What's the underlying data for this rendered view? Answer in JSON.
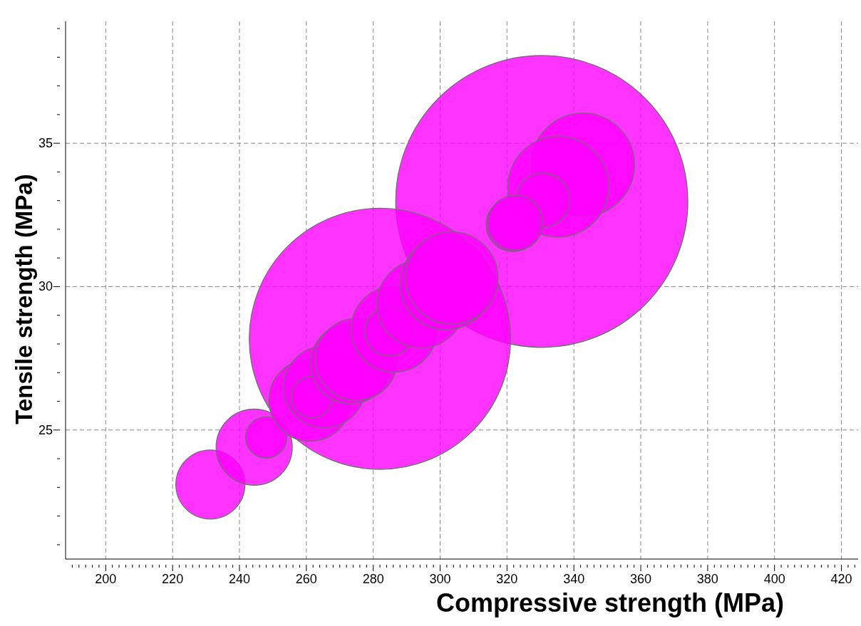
{
  "chart_data": {
    "type": "bubble",
    "xlabel": "Compressive strength (MPa)",
    "ylabel": "Tensile strength (MPa)",
    "color": "#ff00ff",
    "x": [
      330.4,
      282.0,
      231.3,
      244.4,
      248.0,
      261.1,
      265.4,
      261.7,
      273.3,
      275.0,
      286.3,
      284.8,
      294.3,
      301.8,
      303.5,
      342.7,
      335.3,
      330.7,
      321.8,
      322.5
    ],
    "values": [
      32.97,
      28.18,
      23.1,
      24.4,
      24.74,
      26.04,
      26.5,
      26.14,
      27.32,
      27.46,
      28.52,
      28.43,
      29.4,
      30.1,
      30.3,
      34.25,
      33.48,
      33.01,
      32.16,
      32.22
    ],
    "sizes": [
      1,
      0.8,
      0.056,
      0.068,
      0.02,
      0.079,
      0.078,
      0.02,
      0.076,
      0.079,
      0.087,
      0.028,
      0.091,
      0.099,
      0.1,
      0.125,
      0.119,
      0.034,
      0.034,
      0.036
    ],
    "xlim": [
      188,
      425
    ],
    "ylim": [
      20.5,
      39.25
    ],
    "xticks": [
      {
        "value": 190,
        "label": null
      },
      {
        "value": 192,
        "label": null
      },
      {
        "value": 194,
        "label": null
      },
      {
        "value": 196,
        "label": null
      },
      {
        "value": 198,
        "label": null
      },
      200,
      {
        "value": 202,
        "label": null
      },
      {
        "value": 204,
        "label": null
      },
      {
        "value": 206,
        "label": null
      },
      {
        "value": 208,
        "label": null
      },
      {
        "value": 210,
        "label": null
      },
      {
        "value": 212,
        "label": null
      },
      {
        "value": 214,
        "label": null
      },
      {
        "value": 216,
        "label": null
      },
      {
        "value": 218,
        "label": null
      },
      220,
      {
        "value": 222,
        "label": null
      },
      {
        "value": 224,
        "label": null
      },
      {
        "value": 226,
        "label": null
      },
      {
        "value": 228,
        "label": null
      },
      {
        "value": 230,
        "label": null
      },
      {
        "value": 232,
        "label": null
      },
      {
        "value": 234,
        "label": null
      },
      {
        "value": 236,
        "label": null
      },
      {
        "value": 238,
        "label": null
      },
      240,
      {
        "value": 242,
        "label": null
      },
      {
        "value": 244,
        "label": null
      },
      {
        "value": 246,
        "label": null
      },
      {
        "value": 248,
        "label": null
      },
      {
        "value": 250,
        "label": null
      },
      {
        "value": 252,
        "label": null
      },
      {
        "value": 254,
        "label": null
      },
      {
        "value": 256,
        "label": null
      },
      {
        "value": 258,
        "label": null
      },
      260,
      {
        "value": 262,
        "label": null
      },
      {
        "value": 264,
        "label": null
      },
      {
        "value": 266,
        "label": null
      },
      {
        "value": 268,
        "label": null
      },
      {
        "value": 270,
        "label": null
      },
      {
        "value": 272,
        "label": null
      },
      {
        "value": 274,
        "label": null
      },
      {
        "value": 276,
        "label": null
      },
      {
        "value": 278,
        "label": null
      },
      280,
      {
        "value": 282,
        "label": null
      },
      {
        "value": 284,
        "label": null
      },
      {
        "value": 286,
        "label": null
      },
      {
        "value": 288,
        "label": null
      },
      {
        "value": 290,
        "label": null
      },
      {
        "value": 292,
        "label": null
      },
      {
        "value": 294,
        "label": null
      },
      {
        "value": 296,
        "label": null
      },
      {
        "value": 298,
        "label": null
      },
      300,
      {
        "value": 302,
        "label": null
      },
      {
        "value": 304,
        "label": null
      },
      {
        "value": 306,
        "label": null
      },
      {
        "value": 308,
        "label": null
      },
      {
        "value": 310,
        "label": null
      },
      {
        "value": 312,
        "label": null
      },
      {
        "value": 314,
        "label": null
      },
      {
        "value": 316,
        "label": null
      },
      {
        "value": 318,
        "label": null
      },
      320,
      {
        "value": 322,
        "label": null
      },
      {
        "value": 324,
        "label": null
      },
      {
        "value": 326,
        "label": null
      },
      {
        "value": 328,
        "label": null
      },
      {
        "value": 330,
        "label": null
      },
      {
        "value": 332,
        "label": null
      },
      {
        "value": 334,
        "label": null
      },
      {
        "value": 336,
        "label": null
      },
      {
        "value": 338,
        "label": null
      },
      340,
      {
        "value": 342,
        "label": null
      },
      {
        "value": 344,
        "label": null
      },
      {
        "value": 346,
        "label": null
      },
      {
        "value": 348,
        "label": null
      },
      {
        "value": 350,
        "label": null
      },
      {
        "value": 352,
        "label": null
      },
      {
        "value": 354,
        "label": null
      },
      {
        "value": 356,
        "label": null
      },
      {
        "value": 358,
        "label": null
      },
      360,
      {
        "value": 362,
        "label": null
      },
      {
        "value": 364,
        "label": null
      },
      {
        "value": 366,
        "label": null
      },
      {
        "value": 368,
        "label": null
      },
      {
        "value": 370,
        "label": null
      },
      {
        "value": 372,
        "label": null
      },
      {
        "value": 374,
        "label": null
      },
      {
        "value": 376,
        "label": null
      },
      {
        "value": 378,
        "label": null
      },
      380,
      {
        "value": 382,
        "label": null
      },
      {
        "value": 384,
        "label": null
      },
      {
        "value": 386,
        "label": null
      },
      {
        "value": 388,
        "label": null
      },
      {
        "value": 390,
        "label": null
      },
      {
        "value": 392,
        "label": null
      },
      {
        "value": 394,
        "label": null
      },
      {
        "value": 396,
        "label": null
      },
      {
        "value": 398,
        "label": null
      },
      400,
      {
        "value": 402,
        "label": null
      },
      {
        "value": 404,
        "label": null
      },
      {
        "value": 406,
        "label": null
      },
      {
        "value": 408,
        "label": null
      },
      {
        "value": 410,
        "label": null
      },
      {
        "value": 412,
        "label": null
      },
      {
        "value": 414,
        "label": null
      },
      {
        "value": 416,
        "label": null
      },
      {
        "value": 418,
        "label": null
      },
      420,
      {
        "value": 422,
        "label": null
      },
      {
        "value": 424,
        "label": null
      }
    ],
    "yticks": [
      {
        "value": 21,
        "label": null
      },
      {
        "value": 22,
        "label": null
      },
      {
        "value": 23,
        "label": null
      },
      {
        "value": 24,
        "label": null
      },
      25,
      {
        "value": 26,
        "label": null
      },
      {
        "value": 27,
        "label": null
      },
      {
        "value": 28,
        "label": null
      },
      {
        "value": 29,
        "label": null
      },
      30,
      {
        "value": 31,
        "label": null
      },
      {
        "value": 32,
        "label": null
      },
      {
        "value": 33,
        "label": null
      },
      {
        "value": 34,
        "label": null
      },
      35,
      {
        "value": 36,
        "label": null
      },
      {
        "value": 37,
        "label": null
      },
      {
        "value": 38,
        "label": null
      },
      {
        "value": 39,
        "label": null
      }
    ],
    "grid": true
  }
}
